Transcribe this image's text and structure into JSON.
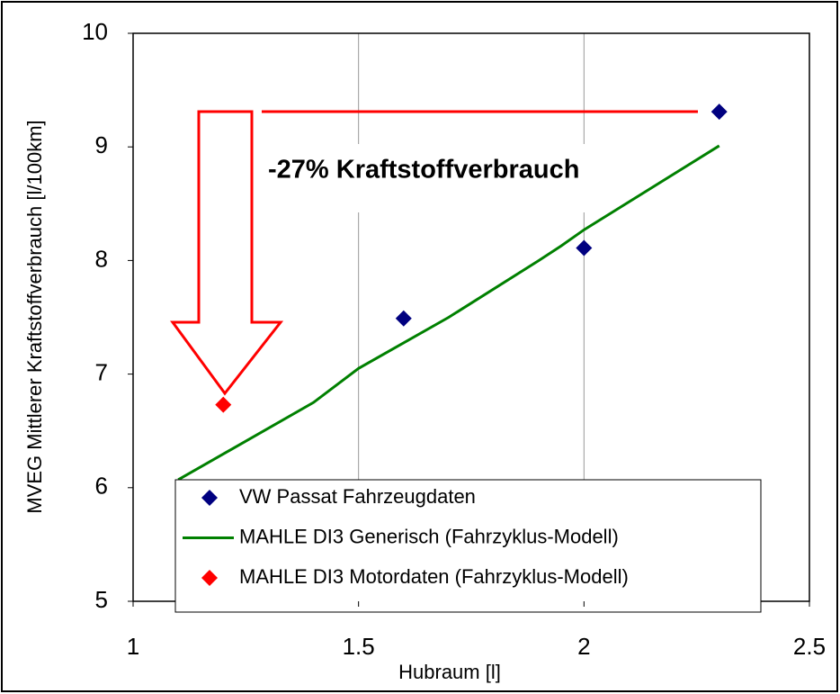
{
  "chart_data": {
    "type": "scatter",
    "xlabel": "Hubraum [l]",
    "ylabel": "MVEG Mittlerer Kraftstoffverbrauch [l/100km]",
    "annotation": "-27% Kraftstoffverbrauch",
    "xlim": [
      1,
      2.5
    ],
    "xticks": [
      1,
      1.5,
      2,
      2.5
    ],
    "ylim": [
      5,
      10
    ],
    "yticks": [
      5,
      6,
      7,
      8,
      9,
      10
    ],
    "grid": "x",
    "series": [
      {
        "name": "VW Passat Fahrzeugdaten",
        "kind": "marker",
        "color": "#000080",
        "x": [
          1.6,
          2.0,
          2.3
        ],
        "values": [
          7.49,
          8.11,
          9.31
        ]
      },
      {
        "name": "MAHLE DI3 Generisch (Fahrzyklus-Modell)",
        "kind": "line",
        "color": "#008000",
        "x": [
          1.1,
          1.4,
          1.5,
          1.7,
          1.9,
          1.95,
          2.0,
          2.3
        ],
        "values": [
          6.07,
          6.75,
          7.05,
          7.5,
          8.0,
          8.13,
          8.27,
          9.01
        ]
      },
      {
        "name": "MAHLE DI3 Motordaten (Fahrzyklus-Modell)",
        "kind": "marker",
        "color": "#ff0000",
        "x": [
          1.2
        ],
        "values": [
          6.73
        ]
      }
    ]
  }
}
